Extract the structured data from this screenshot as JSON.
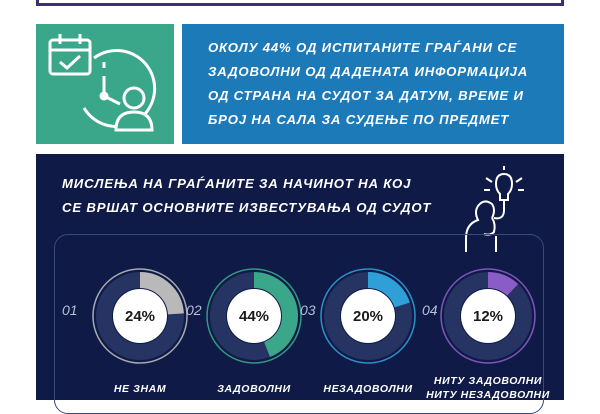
{
  "highlight": {
    "text": "ОКОЛУ 44% ОД ИСПИТАНИТЕ ГРАЃАНИ СЕ\nЗАДОВОЛНИ ОД ДАДЕНАТА ИНФОРМАЦИЈА\nОД СТРАНА НА СУДОТ ЗА ДАТУМ, ВРЕМЕ И\nБРОЈ НА САЛА ЗА СУДЕЊЕ ПО ПРЕДМЕТ"
  },
  "panel": {
    "title": "МИСЛЕЊА НА ГРАЃАНИТЕ ЗА НАЧИНОТ НА КОЈ\nСЕ ВРШАТ ОСНОВНИТЕ ИЗВЕСТУВАЊА ОД СУДОТ"
  },
  "items": [
    {
      "num": "01",
      "pct": "24%",
      "value": 24,
      "label": "НЕ ЗНАМ",
      "color": "#b9b9b9"
    },
    {
      "num": "02",
      "pct": "44%",
      "value": 44,
      "label": "ЗАДОВОЛНИ",
      "color": "#3aa68a"
    },
    {
      "num": "03",
      "pct": "20%",
      "value": 20,
      "label": "НЕЗАДОВОЛНИ",
      "color": "#2f9fd8"
    },
    {
      "num": "04",
      "pct": "12%",
      "value": 12,
      "label": "НИТУ ЗАДОВОЛНИ\nНИТУ НЕЗАДОВОЛНИ",
      "color": "#8a5cc6"
    }
  ],
  "icons": [
    "calendar-check-icon",
    "clock-icon",
    "person-icon",
    "lightbulb-icon",
    "thinking-person-icon"
  ],
  "colors": {
    "teal": "#3aa68a",
    "blue": "#1c7ab8",
    "navy": "#0f1a46"
  }
}
